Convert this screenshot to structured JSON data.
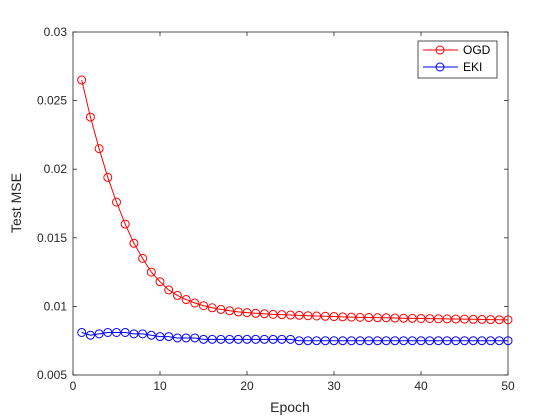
{
  "chart_data": {
    "type": "line",
    "title": "",
    "xlabel": "Epoch",
    "ylabel": "Test MSE",
    "xlim": [
      0,
      50
    ],
    "ylim": [
      0.005,
      0.03
    ],
    "x_ticks": [
      0,
      10,
      20,
      30,
      40,
      50
    ],
    "y_ticks": [
      0.005,
      0.01,
      0.015,
      0.02,
      0.025,
      0.03
    ],
    "x_tick_labels": [
      "0",
      "10",
      "20",
      "30",
      "40",
      "50"
    ],
    "y_tick_labels": [
      "0.005",
      "0.01",
      "0.015",
      "0.02",
      "0.025",
      "0.03"
    ],
    "grid": false,
    "legend_position": "top-right",
    "x": [
      1,
      2,
      3,
      4,
      5,
      6,
      7,
      8,
      9,
      10,
      11,
      12,
      13,
      14,
      15,
      16,
      17,
      18,
      19,
      20,
      21,
      22,
      23,
      24,
      25,
      26,
      27,
      28,
      29,
      30,
      31,
      32,
      33,
      34,
      35,
      36,
      37,
      38,
      39,
      40,
      41,
      42,
      43,
      44,
      45,
      46,
      47,
      48,
      49,
      50
    ],
    "series": [
      {
        "name": "OGD",
        "color": "#ff0000",
        "marker": "circle",
        "values": [
          0.0265,
          0.0238,
          0.0215,
          0.0194,
          0.0176,
          0.016,
          0.0146,
          0.0135,
          0.0125,
          0.0118,
          0.0112,
          0.0108,
          0.0105,
          0.01025,
          0.01005,
          0.0099,
          0.00978,
          0.00968,
          0.0096,
          0.00955,
          0.0095,
          0.00946,
          0.00942,
          0.0094,
          0.00937,
          0.00935,
          0.00932,
          0.0093,
          0.00928,
          0.00926,
          0.00924,
          0.00922,
          0.0092,
          0.00919,
          0.00918,
          0.00917,
          0.00915,
          0.00914,
          0.00913,
          0.00912,
          0.00911,
          0.0091,
          0.00909,
          0.00908,
          0.00907,
          0.00906,
          0.00905,
          0.00904,
          0.00903,
          0.00902
        ]
      },
      {
        "name": "EKI",
        "color": "#0000ff",
        "marker": "circle",
        "values": [
          0.0081,
          0.0079,
          0.008,
          0.0081,
          0.0081,
          0.0081,
          0.008,
          0.008,
          0.0079,
          0.0078,
          0.0078,
          0.0077,
          0.0077,
          0.0077,
          0.0076,
          0.0076,
          0.0076,
          0.0076,
          0.0076,
          0.0076,
          0.0076,
          0.0076,
          0.0076,
          0.0076,
          0.0076,
          0.0075,
          0.0075,
          0.0075,
          0.0075,
          0.0075,
          0.0075,
          0.0075,
          0.0075,
          0.0075,
          0.0075,
          0.0075,
          0.0075,
          0.0075,
          0.0075,
          0.0075,
          0.0075,
          0.0075,
          0.0075,
          0.0075,
          0.0075,
          0.0075,
          0.0075,
          0.0075,
          0.0075,
          0.0075
        ]
      }
    ]
  }
}
